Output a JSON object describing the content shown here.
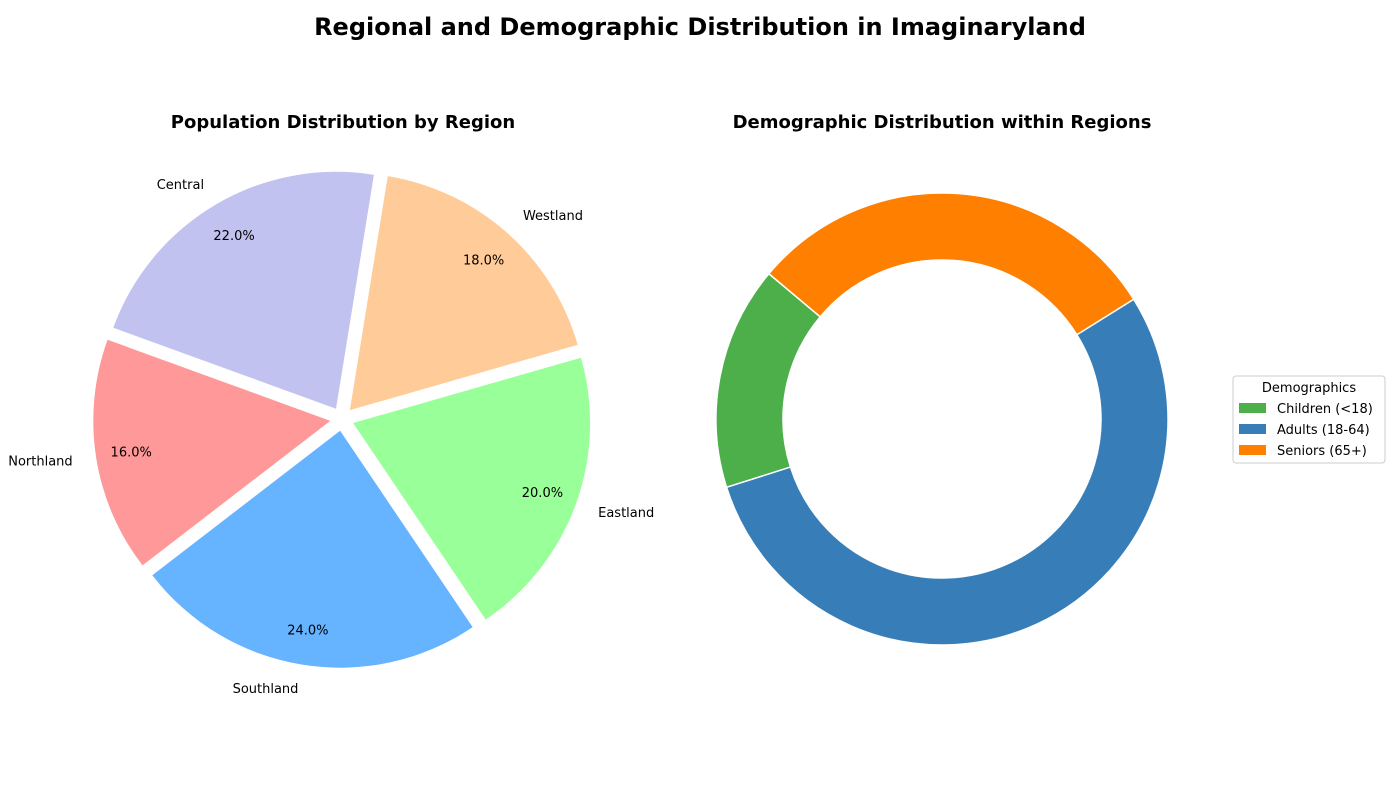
{
  "figure": {
    "title": "Regional and Demographic Distribution in Imaginaryland"
  },
  "chart_data": [
    {
      "type": "pie",
      "title": "Population Distribution by Region",
      "categories": [
        "Northland",
        "Southland",
        "Eastland",
        "Westland",
        "Central"
      ],
      "values": [
        16.0,
        24.0,
        20.0,
        18.0,
        22.0
      ],
      "percent_labels": [
        "16.0%",
        "24.0%",
        "20.0%",
        "18.0%",
        "22.0%"
      ],
      "colors": [
        "#ff9999",
        "#66b3ff",
        "#99ff99",
        "#ffcc99",
        "#c2c2f0"
      ],
      "exploded": true,
      "start_angle_deg": 160,
      "direction": "counterclockwise"
    },
    {
      "type": "pie",
      "variant": "donut",
      "title": "Demographic Distribution within Regions",
      "categories": [
        "Children (<18)",
        "Adults (18-64)",
        "Seniors (65+)"
      ],
      "values": [
        16,
        54,
        30
      ],
      "colors": [
        "#4daf4a",
        "#377eb8",
        "#ff7f00"
      ],
      "legend": {
        "title": "Demographics",
        "entries": [
          "Children (<18)",
          "Adults (18-64)",
          "Seniors (65+)"
        ],
        "placement": "right"
      },
      "start_angle_deg": 140,
      "direction": "counterclockwise"
    }
  ]
}
